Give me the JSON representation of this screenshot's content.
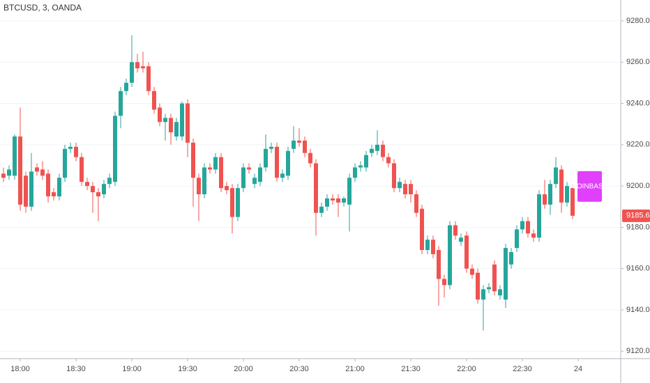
{
  "chart_data": {
    "type": "candlestick",
    "title": "BTCUSD, 3, OANDA",
    "categories": [
      null,
      null,
      null,
      "18:00",
      null,
      null,
      null,
      null,
      null,
      null,
      null,
      null,
      null,
      "18:30",
      null,
      null,
      null,
      null,
      null,
      null,
      null,
      null,
      null,
      "19:00",
      null,
      null,
      null,
      null,
      null,
      null,
      null,
      null,
      null,
      "19:30",
      null,
      null,
      null,
      null,
      null,
      null,
      null,
      null,
      null,
      "20:00",
      null,
      null,
      null,
      null,
      null,
      null,
      null,
      null,
      null,
      "20:30",
      null,
      null,
      null,
      null,
      null,
      null,
      null,
      null,
      null,
      "21:00",
      null,
      null,
      null,
      null,
      null,
      null,
      null,
      null,
      null,
      "21:30",
      null,
      null,
      null,
      null,
      null,
      null,
      null,
      null,
      null,
      "22:00",
      null,
      null,
      null,
      null,
      null,
      null,
      null,
      null,
      null,
      "22:30",
      null,
      null,
      null,
      null,
      null,
      null,
      null,
      null,
      null,
      "24"
    ],
    "open": [
      9206,
      9205,
      9205,
      9224,
      9205,
      9190,
      9209,
      9208,
      9206,
      9197,
      9195,
      9204,
      9218,
      9219,
      9214,
      9202,
      9200,
      9197,
      9196,
      9201,
      9202,
      9234,
      9246,
      9250,
      9260,
      9258,
      9258,
      9246,
      9238,
      9231,
      9233,
      9224,
      9224,
      9240,
      9221,
      9204,
      9196,
      9209,
      9208,
      9214,
      9200,
      9199,
      9185,
      9199,
      9209,
      9201,
      9202,
      9209,
      9218,
      9219,
      9204,
      9205,
      9218,
      9222,
      9222,
      9216,
      9211,
      9187,
      9190,
      9194,
      9194,
      9192,
      9191,
      9204,
      9209,
      9209,
      9216,
      9217,
      9220,
      9214,
      9211,
      9199,
      9201,
      9201,
      9196,
      9189,
      9169,
      9174,
      9169,
      9155,
      9152,
      9181,
      9173,
      9176,
      9160,
      9158,
      9145,
      9150,
      9162,
      9147,
      9145,
      9162,
      9170,
      9179,
      9183,
      9177,
      9175,
      9196,
      9191,
      9201,
      9208,
      9192,
      9199,
      null
    ],
    "high": [
      9209,
      9210,
      9225,
      9238,
      9207,
      9216,
      9211,
      9212,
      9208,
      9199,
      9206,
      9220,
      9221,
      9221,
      9216,
      9204,
      9202,
      9199,
      9203,
      9206,
      9236,
      9248,
      9252,
      9273,
      9264,
      9265,
      9260,
      9248,
      9240,
      9235,
      9235,
      9233,
      9241,
      9242,
      9223,
      9206,
      9211,
      9211,
      9216,
      9216,
      9202,
      9201,
      9201,
      9211,
      9211,
      9206,
      9211,
      9225,
      9221,
      9221,
      9208,
      9219,
      9229,
      9228,
      9224,
      9218,
      9213,
      9192,
      9196,
      9196,
      9196,
      9195,
      9206,
      9211,
      9212,
      9217,
      9220,
      9227,
      9222,
      9216,
      9213,
      9204,
      9203,
      9203,
      9198,
      9191,
      9176,
      9176,
      9171,
      9157,
      9183,
      9183,
      9177,
      9178,
      9162,
      9160,
      9152,
      9153,
      9164,
      9152,
      9172,
      9170,
      9181,
      9185,
      9185,
      9179,
      9198,
      9203,
      9203,
      9214,
      9210,
      9202,
      9201,
      null
    ],
    "low": [
      9202,
      9203,
      9203,
      9188,
      9187,
      9188,
      9205,
      9203,
      9192,
      9193,
      9193,
      9202,
      9216,
      9212,
      9200,
      9198,
      9187,
      9183,
      9194,
      9199,
      9200,
      9228,
      9244,
      9248,
      9255,
      9255,
      9244,
      9235,
      9229,
      9222,
      9220,
      9222,
      9222,
      9214,
      9190,
      9183,
      9194,
      9206,
      9206,
      9197,
      9196,
      9177,
      9183,
      9197,
      9206,
      9199,
      9200,
      9207,
      9216,
      9202,
      9202,
      9203,
      9216,
      9219,
      9214,
      9209,
      9176,
      9185,
      9188,
      9191,
      9185,
      9190,
      9178,
      9202,
      9207,
      9207,
      9214,
      9215,
      9212,
      9209,
      9197,
      9197,
      9194,
      9192,
      9185,
      9167,
      9167,
      9165,
      9142,
      9146,
      9150,
      9174,
      9171,
      9158,
      9155,
      9143,
      9130,
      9148,
      9147,
      9145,
      9141,
      9160,
      9168,
      9177,
      9175,
      9173,
      9173,
      9189,
      9186,
      9199,
      9187,
      9190,
      9184,
      null
    ],
    "close": [
      9204,
      9208,
      9224,
      9191,
      9190,
      9207,
      9207,
      9205,
      9195,
      9195,
      9204,
      9218,
      9219,
      9214,
      9202,
      9200,
      9197,
      9195,
      9201,
      9204,
      9234,
      9246,
      9250,
      9260,
      9257,
      9257,
      9246,
      9237,
      9231,
      9233,
      9226,
      9231,
      9240,
      9221,
      9204,
      9196,
      9209,
      9208,
      9214,
      9199,
      9198,
      9185,
      9199,
      9209,
      9208,
      9204,
      9209,
      9218,
      9219,
      9204,
      9206,
      9217,
      9222,
      9221,
      9216,
      9211,
      9187,
      9190,
      9194,
      9193,
      9192,
      9194,
      9204,
      9209,
      9210,
      9215,
      9218,
      9220,
      9214,
      9211,
      9199,
      9202,
      9196,
      9196,
      9187,
      9169,
      9174,
      9167,
      9155,
      9152,
      9181,
      9176,
      9175,
      9160,
      9157,
      9145,
      9150,
      9151,
      9149,
      9150,
      9170,
      9168,
      9179,
      9183,
      9177,
      9175,
      9196,
      9191,
      9201,
      9209,
      9192,
      9200,
      9185.6,
      null
    ],
    "up_color": "#26a69a",
    "down_color": "#ef5350",
    "ylim": [
      9116.4,
      9290.1
    ],
    "yticks": [
      {
        "value": 9120,
        "label": "9120.0"
      },
      {
        "value": 9140,
        "label": "9140.0"
      },
      {
        "value": 9160,
        "label": "9160.0"
      },
      {
        "value": 9180,
        "label": "9180.0"
      },
      {
        "value": 9200,
        "label": "9200.0"
      },
      {
        "value": 9220,
        "label": "9220.0"
      },
      {
        "value": 9240,
        "label": "9240.0"
      },
      {
        "value": 9260,
        "label": "9260.0"
      },
      {
        "value": 9280,
        "label": "9280.0"
      }
    ],
    "grid": true,
    "last_price": 9185.6,
    "annotation": "COINBASE"
  }
}
